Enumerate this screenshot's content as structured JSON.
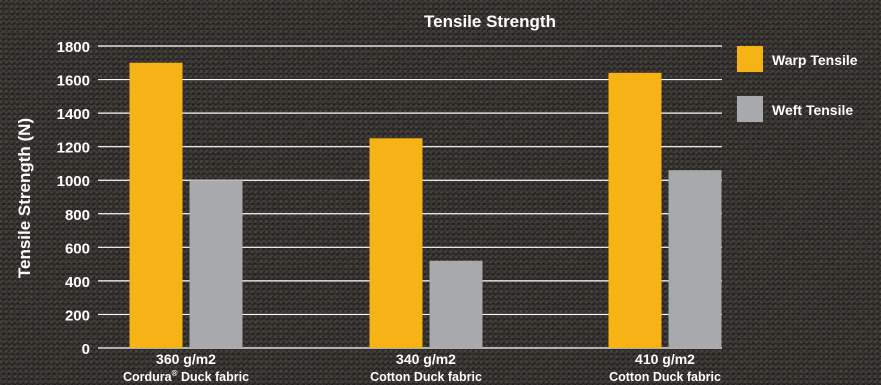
{
  "chart_data": {
    "type": "bar",
    "title": "Tensile Strength",
    "ylabel": "Tensile Strength (N)",
    "xlabel": "",
    "ylim": [
      0,
      1800
    ],
    "yticks": [
      0,
      200,
      400,
      600,
      800,
      1000,
      1200,
      1400,
      1600,
      1800
    ],
    "grid": true,
    "legend_position": "right",
    "categories": [
      {
        "line1": "360 g/m2",
        "line2_main": "Cordura",
        "line2_sup": "®",
        "line2_rest": " Duck fabric"
      },
      {
        "line1": "340 g/m2",
        "line2_main": "Cotton Duck fabric",
        "line2_sup": "",
        "line2_rest": ""
      },
      {
        "line1": "410 g/m2",
        "line2_main": "Cotton Duck fabric",
        "line2_sup": "",
        "line2_rest": ""
      }
    ],
    "series": [
      {
        "name": "Warp Tensile",
        "color": "#f7b215",
        "values": [
          1700,
          1250,
          1640
        ]
      },
      {
        "name": "Weft Tensile",
        "color": "#a7a9ac",
        "values": [
          1000,
          520,
          1060
        ]
      }
    ]
  }
}
